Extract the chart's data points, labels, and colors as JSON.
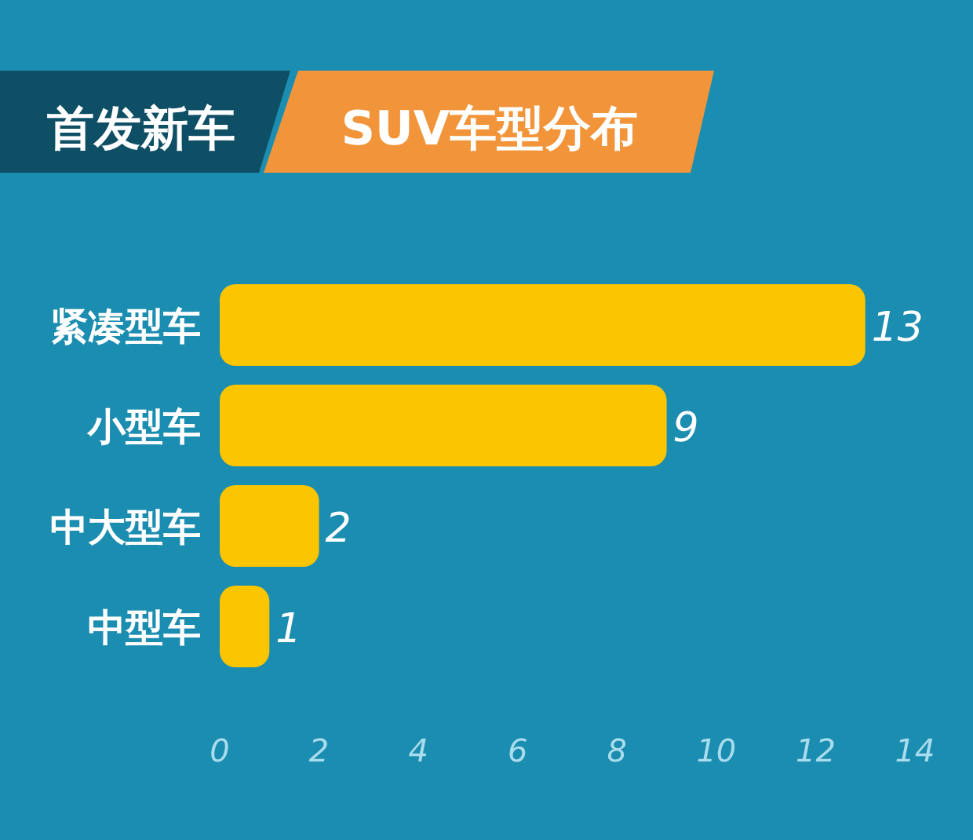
{
  "chart_data": {
    "type": "bar",
    "orientation": "horizontal",
    "title": "首发新车",
    "subtitle": "SUV车型分布",
    "categories": [
      "紧凑型车",
      "小型车",
      "中大型车",
      "中型车"
    ],
    "values": [
      13,
      9,
      2,
      1
    ],
    "color": "#fbc500",
    "xlim": [
      0,
      14
    ],
    "xticks": [
      0,
      2,
      4,
      6,
      8,
      10,
      12,
      14
    ],
    "data_labels": true
  }
}
